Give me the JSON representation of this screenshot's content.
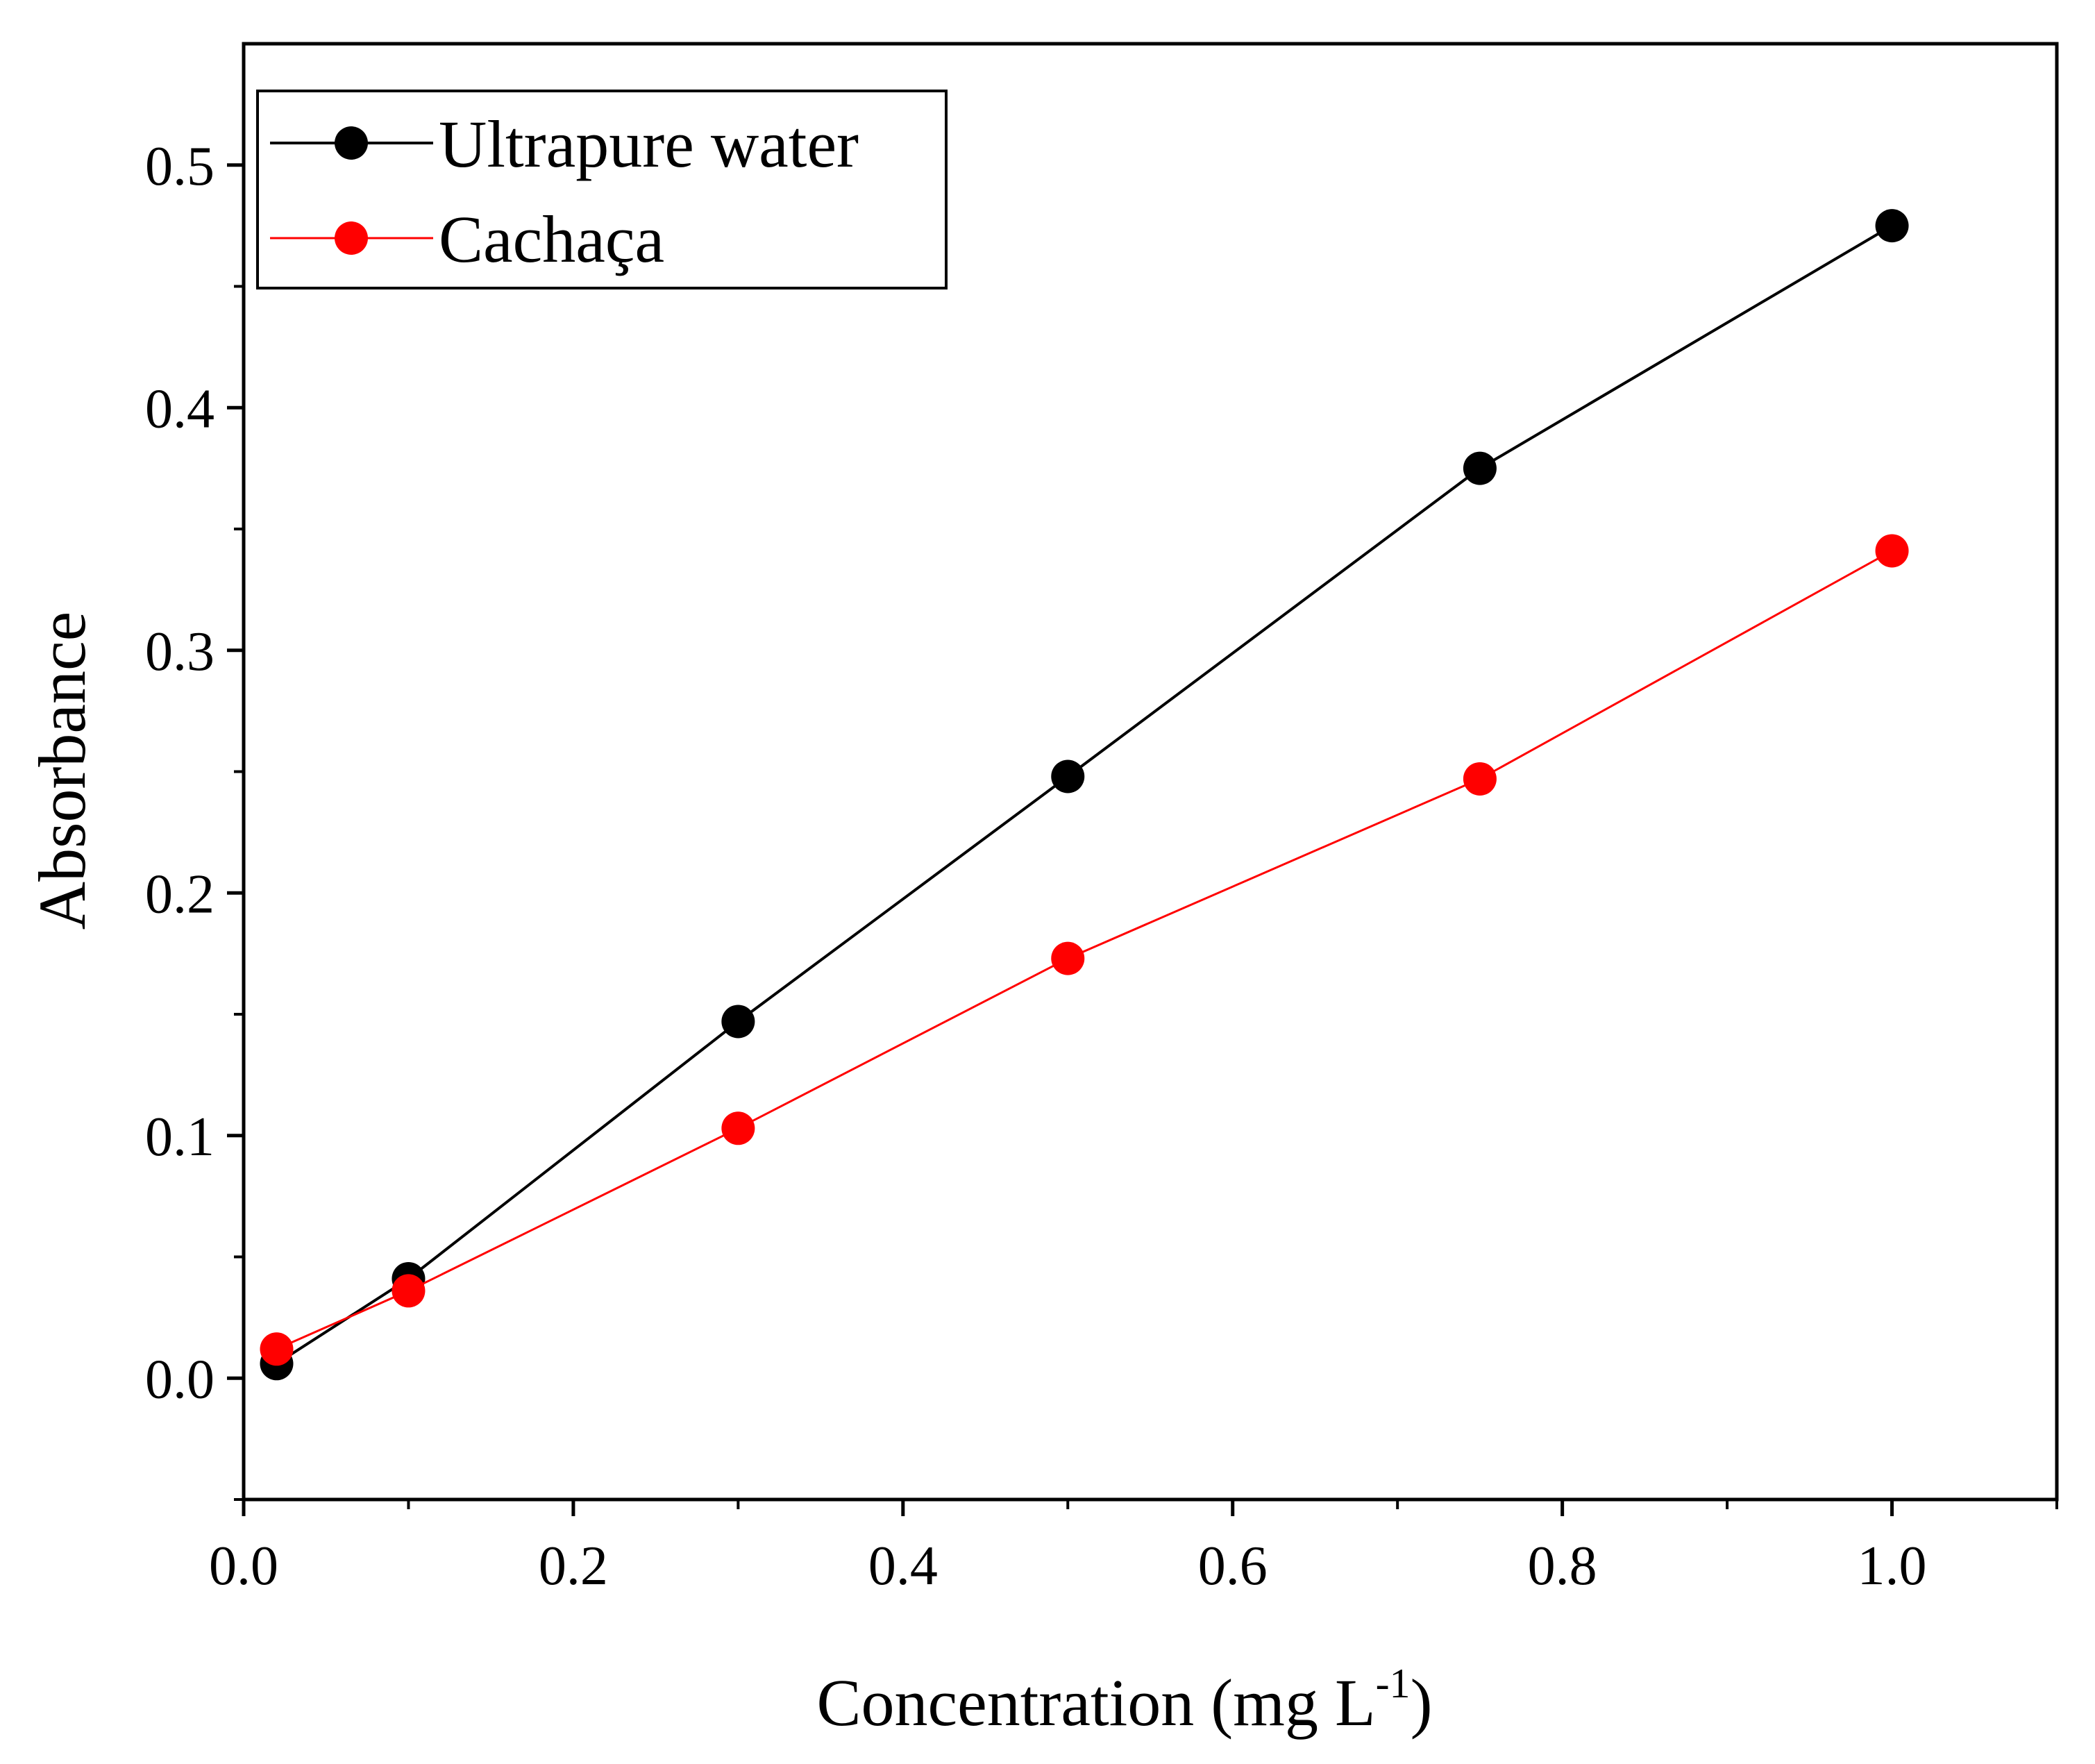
{
  "chart_data": {
    "type": "line",
    "title": "",
    "xlabel": "Concentration (mg L",
    "xlabel_sup": "-1",
    "xlabel_close": ")",
    "ylabel": "Absorbance",
    "xlim": [
      0.0,
      1.1
    ],
    "ylim": [
      -0.05,
      0.55
    ],
    "x_ticks": [
      0.0,
      0.2,
      0.4,
      0.6,
      0.8,
      1.0
    ],
    "x_tick_labels": [
      "0.0",
      "0.2",
      "0.4",
      "0.6",
      "0.8",
      "1.0"
    ],
    "x_minor_ticks": [
      0.1,
      0.3,
      0.5,
      0.7,
      0.9,
      1.1
    ],
    "y_ticks": [
      0.0,
      0.1,
      0.2,
      0.3,
      0.4,
      0.5
    ],
    "y_tick_labels": [
      "0.0",
      "0.1",
      "0.2",
      "0.3",
      "0.4",
      "0.5"
    ],
    "y_minor_ticks": [
      -0.05,
      0.05,
      0.15,
      0.25,
      0.35,
      0.45
    ],
    "grid": false,
    "legend_position": "top-left",
    "series": [
      {
        "name": "Ultrapure water",
        "color": "#000000",
        "x": [
          0.02,
          0.1,
          0.3,
          0.5,
          0.75,
          1.0
        ],
        "y": [
          0.006,
          0.041,
          0.147,
          0.248,
          0.375,
          0.475
        ]
      },
      {
        "name": "Cachaça",
        "color": "#ff0000",
        "x": [
          0.02,
          0.1,
          0.3,
          0.5,
          0.75,
          1.0
        ],
        "y": [
          0.012,
          0.036,
          0.103,
          0.173,
          0.247,
          0.341
        ]
      }
    ]
  }
}
